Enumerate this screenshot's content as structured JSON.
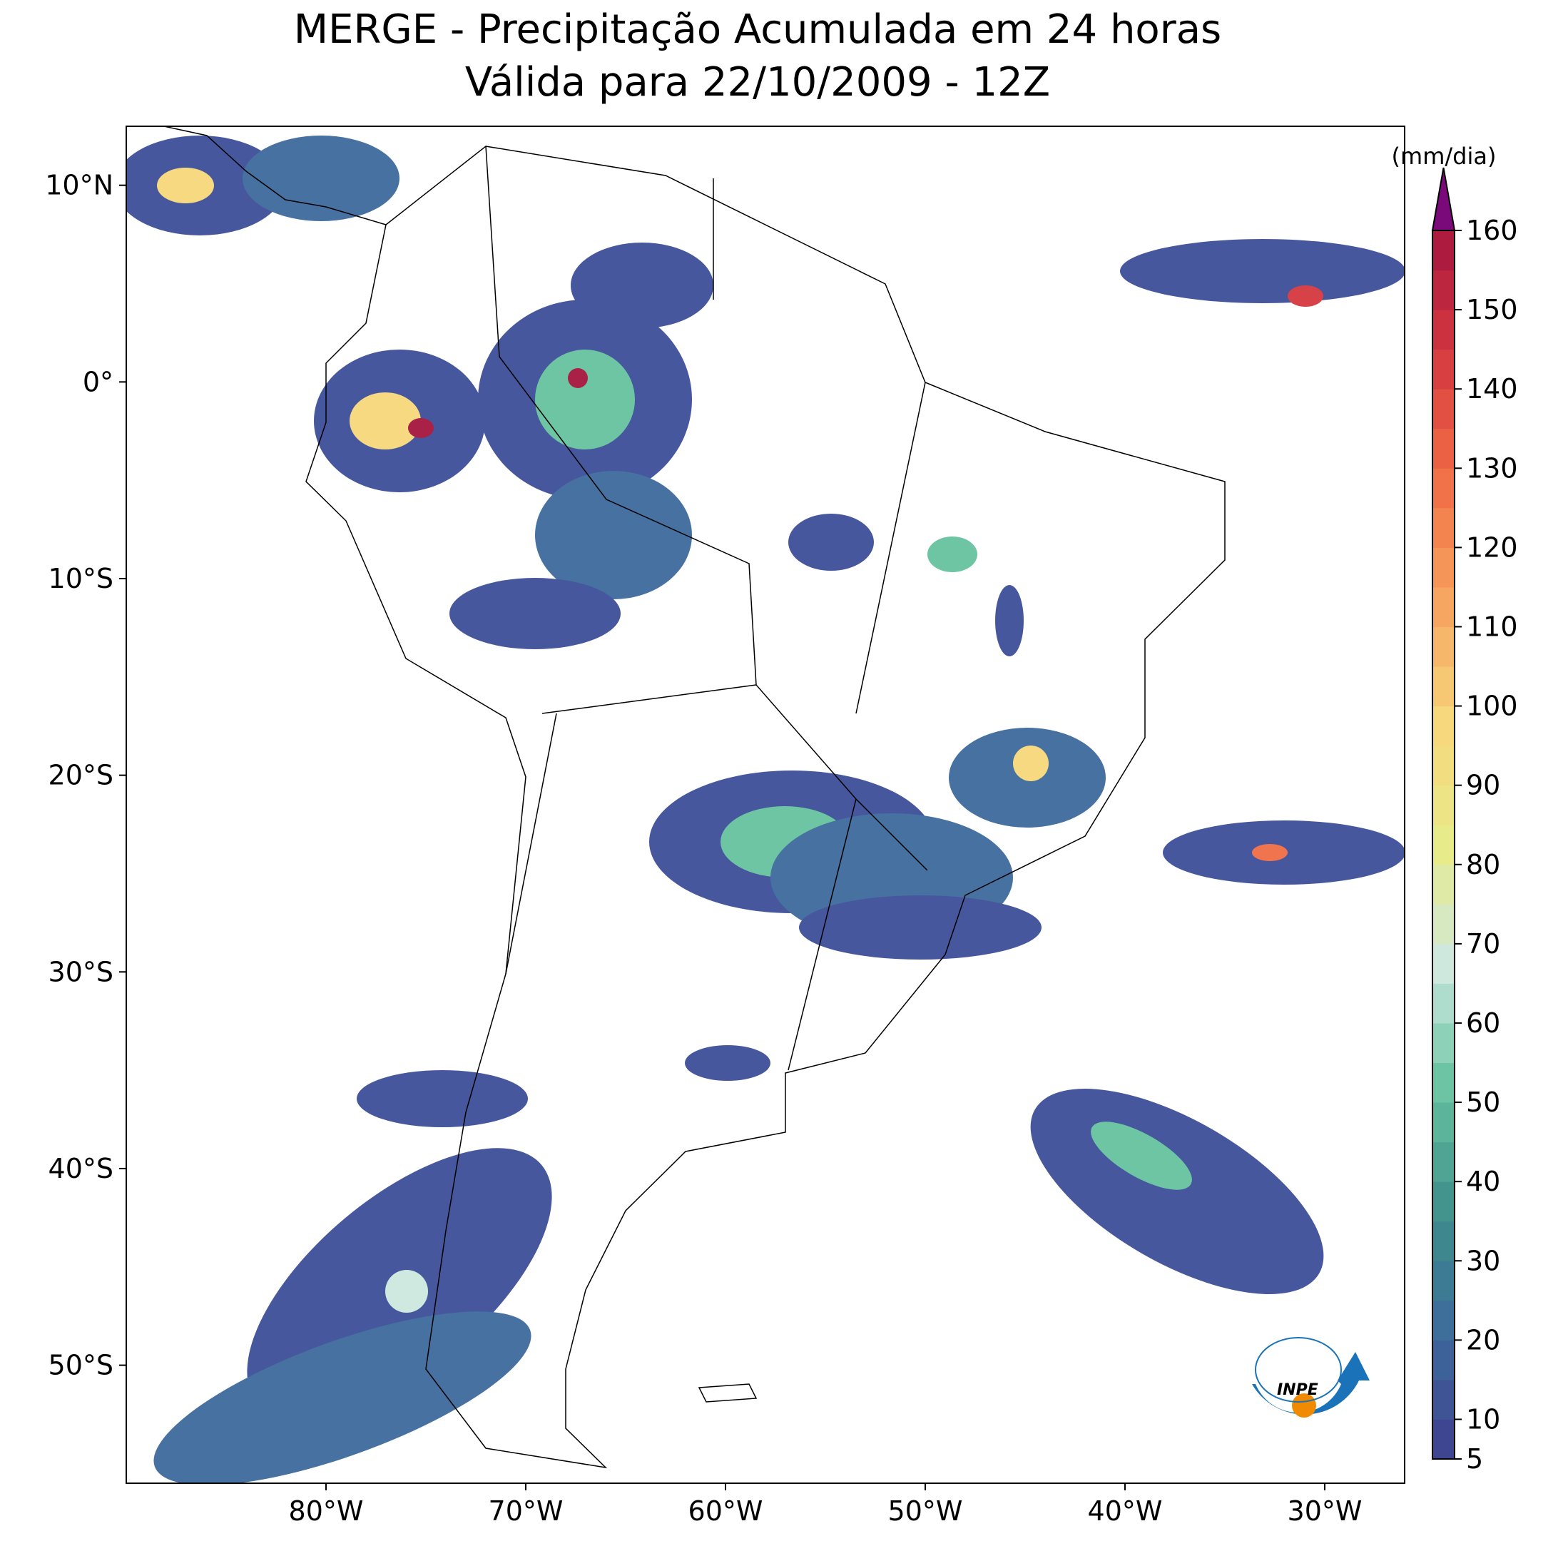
{
  "chart_data": {
    "type": "map",
    "title": "MERGE - Precipitação Acumulada em 24 horas",
    "subtitle": "Válida para 22/10/2009 - 12Z",
    "xlim": [
      -90,
      -26
    ],
    "ylim": [
      -56,
      13
    ],
    "xticks": [
      {
        "value": -80,
        "label": "80°W"
      },
      {
        "value": -70,
        "label": "70°W"
      },
      {
        "value": -60,
        "label": "60°W"
      },
      {
        "value": -50,
        "label": "50°W"
      },
      {
        "value": -40,
        "label": "40°W"
      },
      {
        "value": -30,
        "label": "30°W"
      }
    ],
    "yticks": [
      {
        "value": 10,
        "label": "10°N"
      },
      {
        "value": 0,
        "label": "0°"
      },
      {
        "value": -10,
        "label": "10°S"
      },
      {
        "value": -20,
        "label": "20°S"
      },
      {
        "value": -30,
        "label": "30°S"
      },
      {
        "value": -40,
        "label": "40°S"
      },
      {
        "value": -50,
        "label": "50°S"
      }
    ],
    "colorbar": {
      "label": "(mm/dia)",
      "lim": [
        5,
        160
      ],
      "ticks": [
        5,
        10,
        20,
        30,
        40,
        50,
        60,
        70,
        80,
        90,
        100,
        110,
        120,
        130,
        140,
        150,
        160
      ],
      "colors": [
        "#3f3f8f",
        "#3d6a9c",
        "#3e8f8a",
        "#66c2a0",
        "#cde8e0",
        "#e8eb8a",
        "#f7d77c",
        "#f7a35f",
        "#f06d45",
        "#d4383f",
        "#a6163f"
      ],
      "extend_color": "#7a0a7a"
    },
    "logo": "INPE"
  }
}
